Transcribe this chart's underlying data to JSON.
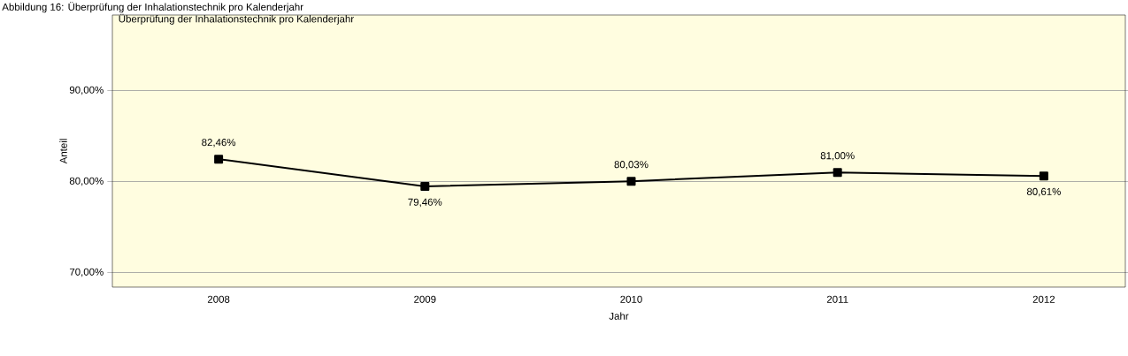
{
  "chart_data": {
    "type": "line",
    "title": "Überprüfung der Inhalationstechnik pro Kalenderjahr",
    "xlabel": "Jahr",
    "ylabel": "Anteil",
    "annotations": [
      "Abbildung 16: Überprüfung der Inhalationstechnik pro Kalenderjahr"
    ],
    "categories": [
      "2008",
      "2009",
      "2010",
      "2011",
      "2012"
    ],
    "series": [
      {
        "color": "#000000",
        "values": [
          82.46,
          79.46,
          80.03,
          81.0,
          80.61
        ],
        "value_labels": [
          "82,46%",
          "79,46%",
          "80,03%",
          "81,00%",
          "80,61%"
        ]
      }
    ],
    "ylim": [
      68.4,
      98.3
    ],
    "yticks": [
      {
        "value": 70,
        "label": "70,00%"
      },
      {
        "value": 80,
        "label": "80,00%"
      },
      {
        "value": 90,
        "label": "90,00%"
      }
    ],
    "grid": "y",
    "marker": "square",
    "line_style": "solid"
  }
}
